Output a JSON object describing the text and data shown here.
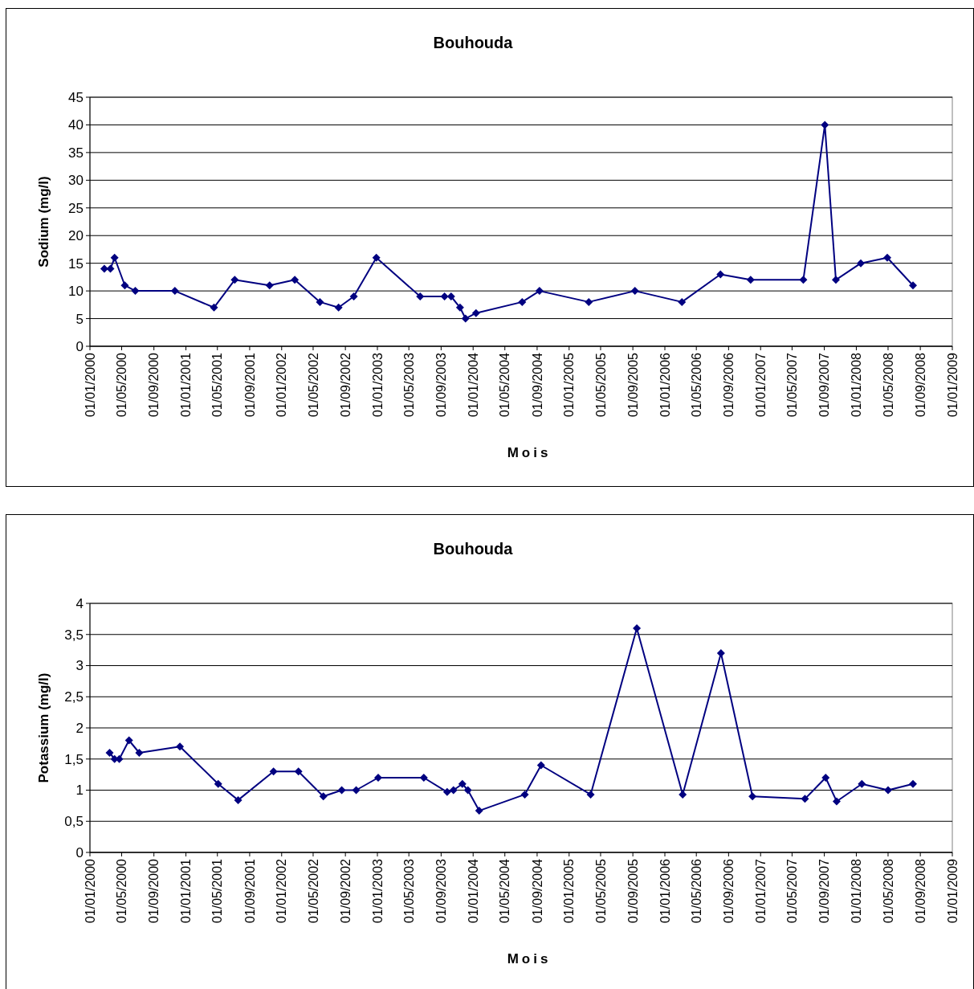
{
  "chart_data": [
    {
      "type": "line",
      "title": "Bouhouda",
      "xlabel": "Mois",
      "ylabel": "Sodium (mg/l)",
      "grid": "y",
      "marker": "diamond",
      "line_style": "solid",
      "xlim": [
        "2000-01-01",
        "2009-01-01"
      ],
      "xticks": [
        {
          "value": "2000-01-01",
          "label": "01/01/2000"
        },
        {
          "value": "2000-05-01",
          "label": "01/05/2000"
        },
        {
          "value": "2000-09-01",
          "label": "01/09/2000"
        },
        {
          "value": "2001-01-01",
          "label": "01/01/2001"
        },
        {
          "value": "2001-05-01",
          "label": "01/05/2001"
        },
        {
          "value": "2001-09-01",
          "label": "01/09/2001"
        },
        {
          "value": "2002-01-01",
          "label": "01/01/2002"
        },
        {
          "value": "2002-05-01",
          "label": "01/05/2002"
        },
        {
          "value": "2002-09-01",
          "label": "01/09/2002"
        },
        {
          "value": "2003-01-01",
          "label": "01/01/2003"
        },
        {
          "value": "2003-05-01",
          "label": "01/05/2003"
        },
        {
          "value": "2003-09-01",
          "label": "01/09/2003"
        },
        {
          "value": "2004-01-01",
          "label": "01/01/2004"
        },
        {
          "value": "2004-05-01",
          "label": "01/05/2004"
        },
        {
          "value": "2004-09-01",
          "label": "01/09/2004"
        },
        {
          "value": "2005-01-01",
          "label": "01/01/2005"
        },
        {
          "value": "2005-05-01",
          "label": "01/05/2005"
        },
        {
          "value": "2005-09-01",
          "label": "01/09/2005"
        },
        {
          "value": "2006-01-01",
          "label": "01/01/2006"
        },
        {
          "value": "2006-05-01",
          "label": "01/05/2006"
        },
        {
          "value": "2006-09-01",
          "label": "01/09/2006"
        },
        {
          "value": "2007-01-01",
          "label": "01/01/2007"
        },
        {
          "value": "2007-05-01",
          "label": "01/05/2007"
        },
        {
          "value": "2007-09-01",
          "label": "01/09/2007"
        },
        {
          "value": "2008-01-01",
          "label": "01/01/2008"
        },
        {
          "value": "2008-05-01",
          "label": "01/05/2008"
        },
        {
          "value": "2008-09-01",
          "label": "01/09/2008"
        },
        {
          "value": "2009-01-01",
          "label": "01/01/2009"
        }
      ],
      "ylim": [
        0,
        45
      ],
      "yticks": [
        0,
        5,
        10,
        15,
        20,
        25,
        30,
        35,
        40,
        45
      ],
      "x": [
        "2000-02-25",
        "2000-03-19",
        "2000-04-04",
        "2000-05-13",
        "2000-06-22",
        "2000-11-20",
        "2001-04-18",
        "2001-07-06",
        "2001-11-16",
        "2002-02-20",
        "2002-05-27",
        "2002-08-06",
        "2002-10-03",
        "2002-12-28",
        "2003-06-13",
        "2003-09-14",
        "2003-10-09",
        "2003-11-12",
        "2003-12-03",
        "2004-01-12",
        "2004-07-06",
        "2004-09-10",
        "2005-03-17",
        "2005-09-09",
        "2006-03-07",
        "2006-08-01",
        "2006-11-24",
        "2007-06-13",
        "2007-09-03",
        "2007-10-15",
        "2008-01-18",
        "2008-04-28",
        "2008-08-04"
      ],
      "series": [
        {
          "color": "#000080",
          "values": [
            14,
            14,
            16,
            11,
            10,
            10,
            7,
            12,
            11,
            12,
            8,
            7,
            9,
            16,
            9,
            9,
            9,
            7,
            5,
            6,
            8,
            10,
            8,
            10,
            8,
            13,
            12,
            12,
            40,
            12,
            15,
            16,
            11
          ]
        }
      ]
    },
    {
      "type": "line",
      "title": "Bouhouda",
      "xlabel": "Mois",
      "ylabel": "Potassium (mg/l)",
      "grid": "y",
      "marker": "diamond",
      "line_style": "solid",
      "xlim": [
        "2000-01-01",
        "2009-01-01"
      ],
      "xticks": [
        {
          "value": "2000-01-01",
          "label": "01/01/2000"
        },
        {
          "value": "2000-05-01",
          "label": "01/05/2000"
        },
        {
          "value": "2000-09-01",
          "label": "01/09/2000"
        },
        {
          "value": "2001-01-01",
          "label": "01/01/2001"
        },
        {
          "value": "2001-05-01",
          "label": "01/05/2001"
        },
        {
          "value": "2001-09-01",
          "label": "01/09/2001"
        },
        {
          "value": "2002-01-01",
          "label": "01/01/2002"
        },
        {
          "value": "2002-05-01",
          "label": "01/05/2002"
        },
        {
          "value": "2002-09-01",
          "label": "01/09/2002"
        },
        {
          "value": "2003-01-01",
          "label": "01/01/2003"
        },
        {
          "value": "2003-05-01",
          "label": "01/05/2003"
        },
        {
          "value": "2003-09-01",
          "label": "01/09/2003"
        },
        {
          "value": "2004-01-01",
          "label": "01/01/2004"
        },
        {
          "value": "2004-05-01",
          "label": "01/05/2004"
        },
        {
          "value": "2004-09-01",
          "label": "01/09/2004"
        },
        {
          "value": "2005-01-01",
          "label": "01/01/2005"
        },
        {
          "value": "2005-05-01",
          "label": "01/05/2005"
        },
        {
          "value": "2005-09-01",
          "label": "01/09/2005"
        },
        {
          "value": "2006-01-01",
          "label": "01/01/2006"
        },
        {
          "value": "2006-05-01",
          "label": "01/05/2006"
        },
        {
          "value": "2006-09-01",
          "label": "01/09/2006"
        },
        {
          "value": "2007-01-01",
          "label": "01/01/2007"
        },
        {
          "value": "2007-05-01",
          "label": "01/05/2007"
        },
        {
          "value": "2007-09-01",
          "label": "01/09/2007"
        },
        {
          "value": "2008-01-01",
          "label": "01/01/2008"
        },
        {
          "value": "2008-05-01",
          "label": "01/05/2008"
        },
        {
          "value": "2008-09-01",
          "label": "01/09/2008"
        },
        {
          "value": "2009-01-01",
          "label": "01/01/2009"
        }
      ],
      "ylim": [
        0,
        4
      ],
      "yticks": [
        0,
        {
          "value": 0.5,
          "label": "0,5"
        },
        1,
        {
          "value": 1.5,
          "label": "1,5"
        },
        2,
        {
          "value": 2.5,
          "label": "2,5"
        },
        3,
        {
          "value": 3.5,
          "label": "3,5"
        },
        4
      ],
      "x": [
        "2000-03-16",
        "2000-04-04",
        "2000-04-22",
        "2000-05-29",
        "2000-07-07",
        "2000-12-09",
        "2001-05-04",
        "2001-07-19",
        "2001-12-01",
        "2002-03-06",
        "2002-06-09",
        "2002-08-18",
        "2002-10-12",
        "2003-01-04",
        "2003-06-27",
        "2003-09-24",
        "2003-10-18",
        "2003-11-21",
        "2003-12-12",
        "2004-01-24",
        "2004-07-16",
        "2004-09-16",
        "2005-03-24",
        "2005-09-16",
        "2006-03-10",
        "2006-08-03",
        "2006-12-01",
        "2007-06-19",
        "2007-09-06",
        "2007-10-18",
        "2008-01-22",
        "2008-05-01",
        "2008-08-04"
      ],
      "series": [
        {
          "color": "#000080",
          "values": [
            1.6,
            1.5,
            1.5,
            1.8,
            1.6,
            1.7,
            1.1,
            0.84,
            1.3,
            1.3,
            0.9,
            1,
            1,
            1.2,
            1.2,
            0.97,
            1,
            1.1,
            1,
            0.67,
            0.93,
            1.4,
            0.93,
            3.6,
            0.93,
            3.2,
            0.9,
            0.86,
            1.2,
            0.82,
            1.1,
            1,
            1.1
          ]
        }
      ]
    }
  ]
}
